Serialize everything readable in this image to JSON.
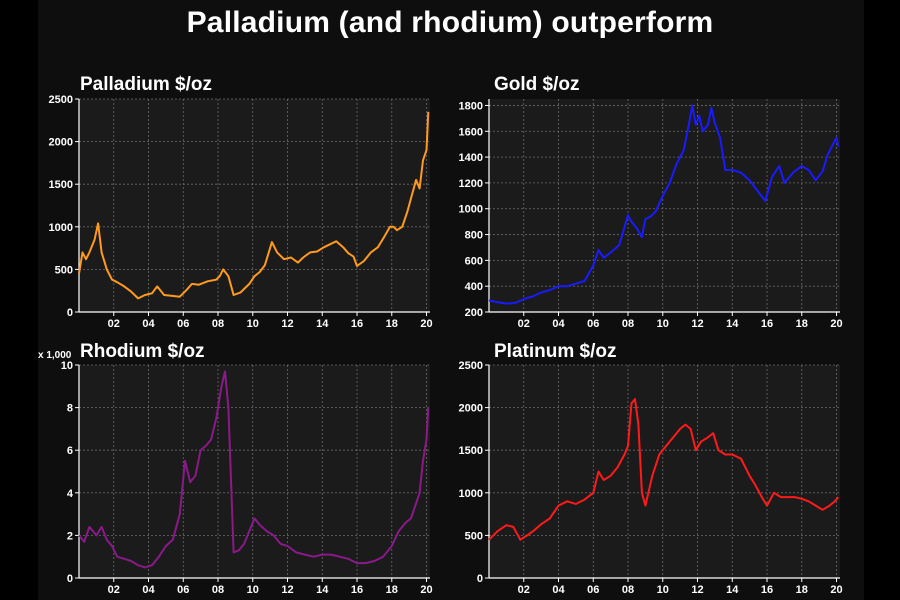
{
  "title": "Palladium (and rhodium) outperform",
  "chart_data": [
    {
      "type": "line",
      "title": "Palladium $/oz",
      "color": "#ff9a1e",
      "xlim": [
        2000,
        2020.2
      ],
      "ylim": [
        0,
        2500
      ],
      "y_ticks": [
        0,
        500,
        1000,
        1500,
        2000,
        2500
      ],
      "x_ticks": [
        "02",
        "04",
        "06",
        "08",
        "10",
        "12",
        "14",
        "16",
        "18",
        "20"
      ],
      "grid": true,
      "series": [
        {
          "x": [
            2000.0,
            2000.2,
            2000.4,
            2000.6,
            2000.9,
            2001.1,
            2001.3,
            2001.6,
            2001.9,
            2002.2,
            2002.6,
            2003.0,
            2003.4,
            2003.8,
            2004.2,
            2004.5,
            2004.9,
            2005.3,
            2005.8,
            2006.2,
            2006.5,
            2006.9,
            2007.4,
            2007.9,
            2008.1,
            2008.3,
            2008.6,
            2008.9,
            2009.3,
            2009.8,
            2010.1,
            2010.4,
            2010.7,
            2011.1,
            2011.4,
            2011.8,
            2012.2,
            2012.6,
            2012.9,
            2013.3,
            2013.7,
            2014.1,
            2014.5,
            2014.8,
            2015.2,
            2015.5,
            2015.8,
            2016.0,
            2016.4,
            2016.8,
            2017.2,
            2017.5,
            2017.9,
            2018.1,
            2018.3,
            2018.6,
            2018.9,
            2019.1,
            2019.4,
            2019.6,
            2019.8,
            2020.0,
            2020.1
          ],
          "y": [
            450,
            700,
            620,
            700,
            850,
            1040,
            700,
            500,
            380,
            350,
            300,
            240,
            160,
            200,
            220,
            300,
            200,
            190,
            180,
            260,
            330,
            320,
            360,
            380,
            420,
            500,
            420,
            200,
            230,
            330,
            420,
            470,
            550,
            820,
            700,
            620,
            640,
            580,
            640,
            700,
            710,
            760,
            800,
            830,
            760,
            690,
            650,
            540,
            600,
            700,
            760,
            860,
            1000,
            1000,
            960,
            1000,
            1180,
            1330,
            1550,
            1450,
            1780,
            1900,
            2350
          ]
        }
      ]
    },
    {
      "type": "line",
      "title": "Gold $/oz",
      "color": "#1a1aff",
      "xlim": [
        2000,
        2020.2
      ],
      "ylim": [
        200,
        1850
      ],
      "y_ticks": [
        200,
        400,
        600,
        800,
        1000,
        1200,
        1400,
        1600,
        1800
      ],
      "x_ticks": [
        "02",
        "04",
        "06",
        "08",
        "10",
        "12",
        "14",
        "16",
        "18",
        "20"
      ],
      "grid": true,
      "series": [
        {
          "x": [
            2000.0,
            2000.5,
            2001.0,
            2001.5,
            2002.0,
            2002.5,
            2003.0,
            2003.5,
            2004.0,
            2004.5,
            2005.0,
            2005.5,
            2006.0,
            2006.3,
            2006.6,
            2007.0,
            2007.5,
            2008.0,
            2008.2,
            2008.5,
            2008.8,
            2009.0,
            2009.3,
            2009.6,
            2010.0,
            2010.4,
            2010.8,
            2011.2,
            2011.5,
            2011.7,
            2011.9,
            2012.1,
            2012.3,
            2012.6,
            2012.8,
            2013.0,
            2013.3,
            2013.6,
            2014.0,
            2014.5,
            2015.0,
            2015.5,
            2015.9,
            2016.3,
            2016.7,
            2017.0,
            2017.5,
            2018.0,
            2018.4,
            2018.8,
            2019.2,
            2019.5,
            2019.8,
            2020.0,
            2020.1
          ],
          "y": [
            290,
            275,
            265,
            270,
            300,
            320,
            350,
            370,
            400,
            400,
            420,
            440,
            560,
            680,
            620,
            660,
            720,
            950,
            900,
            850,
            780,
            920,
            940,
            980,
            1100,
            1200,
            1350,
            1450,
            1650,
            1800,
            1650,
            1720,
            1600,
            1650,
            1780,
            1660,
            1550,
            1300,
            1300,
            1280,
            1220,
            1130,
            1060,
            1250,
            1330,
            1200,
            1280,
            1330,
            1300,
            1220,
            1290,
            1420,
            1500,
            1550,
            1480
          ]
        }
      ]
    },
    {
      "type": "line",
      "title": "Rhodium $/oz",
      "y_multiplier_label": "x 1,000",
      "color": "#8a1a8a",
      "xlim": [
        2000,
        2020.2
      ],
      "ylim": [
        0,
        10
      ],
      "y_ticks": [
        0,
        2,
        4,
        6,
        8,
        10
      ],
      "x_ticks": [
        "02",
        "04",
        "06",
        "08",
        "10",
        "12",
        "14",
        "16",
        "18",
        "20"
      ],
      "grid": true,
      "series": [
        {
          "x": [
            2000.0,
            2000.3,
            2000.6,
            2001.0,
            2001.3,
            2001.6,
            2001.9,
            2002.2,
            2002.6,
            2003.0,
            2003.4,
            2003.8,
            2004.2,
            2004.6,
            2005.0,
            2005.4,
            2005.8,
            2006.1,
            2006.4,
            2006.7,
            2007.0,
            2007.3,
            2007.6,
            2007.9,
            2008.2,
            2008.4,
            2008.6,
            2008.9,
            2009.2,
            2009.5,
            2009.8,
            2010.1,
            2010.4,
            2010.8,
            2011.2,
            2011.6,
            2012.0,
            2012.5,
            2013.0,
            2013.5,
            2014.0,
            2014.5,
            2015.0,
            2015.5,
            2016.0,
            2016.5,
            2017.0,
            2017.5,
            2018.0,
            2018.4,
            2018.8,
            2019.1,
            2019.4,
            2019.6,
            2019.8,
            2020.0,
            2020.1
          ],
          "y": [
            2.0,
            1.7,
            2.4,
            2.0,
            2.4,
            1.8,
            1.5,
            1.0,
            0.9,
            0.8,
            0.6,
            0.5,
            0.6,
            1.0,
            1.5,
            1.8,
            3.0,
            5.5,
            4.5,
            4.8,
            6.0,
            6.2,
            6.5,
            7.5,
            9.0,
            9.7,
            8.0,
            1.2,
            1.3,
            1.6,
            2.2,
            2.8,
            2.5,
            2.2,
            2.0,
            1.6,
            1.5,
            1.2,
            1.1,
            1.0,
            1.1,
            1.1,
            1.0,
            0.9,
            0.7,
            0.7,
            0.8,
            1.0,
            1.5,
            2.2,
            2.6,
            2.8,
            3.5,
            4.0,
            5.5,
            6.5,
            8.0
          ]
        }
      ]
    },
    {
      "type": "line",
      "title": "Platinum $/oz",
      "color": "#ff1a1a",
      "xlim": [
        2000,
        2020.2
      ],
      "ylim": [
        0,
        2500
      ],
      "y_ticks": [
        0,
        500,
        1000,
        1500,
        2000,
        2500
      ],
      "x_ticks": [
        "02",
        "04",
        "06",
        "08",
        "10",
        "12",
        "14",
        "16",
        "18",
        "20"
      ],
      "grid": true,
      "series": [
        {
          "x": [
            2000.0,
            2000.5,
            2001.0,
            2001.4,
            2001.8,
            2002.2,
            2002.6,
            2003.0,
            2003.5,
            2004.0,
            2004.5,
            2005.0,
            2005.5,
            2006.0,
            2006.3,
            2006.6,
            2007.0,
            2007.4,
            2007.8,
            2008.0,
            2008.2,
            2008.4,
            2008.6,
            2008.8,
            2009.0,
            2009.4,
            2009.8,
            2010.2,
            2010.6,
            2011.0,
            2011.3,
            2011.6,
            2011.9,
            2012.2,
            2012.6,
            2012.9,
            2013.2,
            2013.6,
            2014.0,
            2014.5,
            2015.0,
            2015.3,
            2015.7,
            2016.0,
            2016.4,
            2016.8,
            2017.2,
            2017.6,
            2018.0,
            2018.4,
            2018.8,
            2019.2,
            2019.6,
            2019.9,
            2020.1
          ],
          "y": [
            450,
            550,
            620,
            600,
            450,
            500,
            560,
            630,
            700,
            850,
            900,
            870,
            920,
            1000,
            1250,
            1150,
            1200,
            1300,
            1450,
            1550,
            2050,
            2100,
            1800,
            1000,
            850,
            1200,
            1450,
            1550,
            1650,
            1750,
            1800,
            1750,
            1500,
            1600,
            1650,
            1700,
            1500,
            1450,
            1450,
            1400,
            1200,
            1100,
            950,
            850,
            1000,
            950,
            950,
            950,
            930,
            900,
            850,
            800,
            850,
            900,
            950
          ]
        }
      ]
    }
  ]
}
